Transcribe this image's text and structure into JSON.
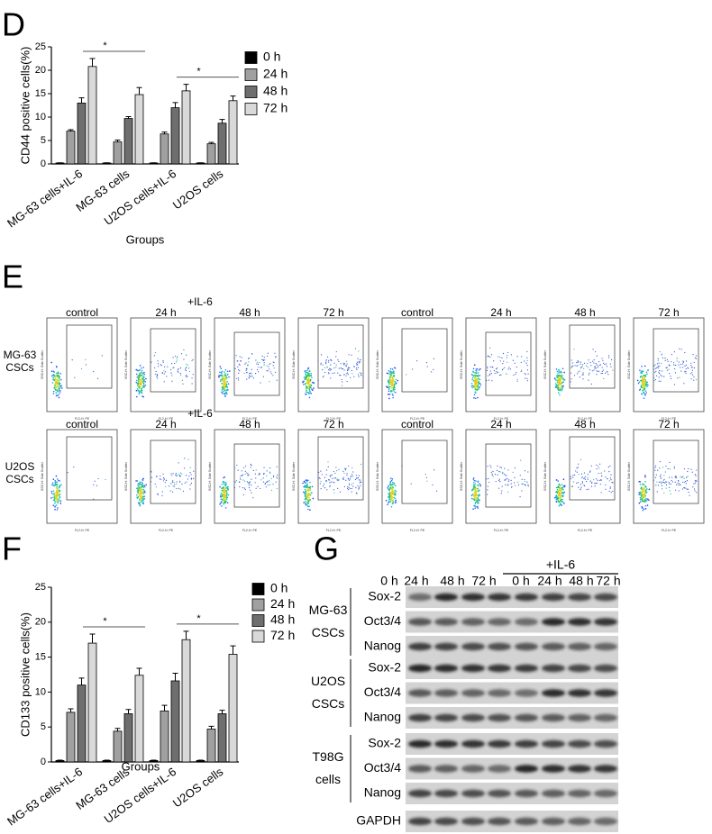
{
  "chart_data": [
    {
      "type": "bar",
      "panel_label": "D",
      "ylabel": "CD44 positive cells(%)",
      "xlabel": "Groups",
      "categories": [
        "MG-63 cells+IL-6",
        "MG-63 cells",
        "U2OS cells+IL-6",
        "U2OS cells"
      ],
      "series": [
        {
          "name": "0 h",
          "color": "#000000",
          "values": [
            0.2,
            0.2,
            0.2,
            0.2
          ],
          "errors": [
            0.05,
            0.05,
            0.05,
            0.05
          ]
        },
        {
          "name": "24 h",
          "color": "#a0a0a0",
          "values": [
            7,
            4.7,
            6.4,
            4.3
          ],
          "errors": [
            0.3,
            0.4,
            0.4,
            0.3
          ]
        },
        {
          "name": "48 h",
          "color": "#6e6e6e",
          "values": [
            13,
            9.7,
            12,
            8.7
          ],
          "errors": [
            1.1,
            0.4,
            1.1,
            0.8
          ]
        },
        {
          "name": "72 h",
          "color": "#d9d9d9",
          "values": [
            20.8,
            14.8,
            15.6,
            13.5
          ],
          "errors": [
            1.7,
            1.5,
            1.4,
            1.0
          ]
        }
      ],
      "ylim": [
        0,
        25
      ],
      "yticks": [
        0,
        5,
        10,
        15,
        20,
        25
      ],
      "legend": "right",
      "annotations": [
        "*",
        "*"
      ]
    },
    {
      "type": "bar",
      "panel_label": "F",
      "ylabel": "CD133 positive cells(%)",
      "xlabel": "Groups",
      "categories": [
        "MG-63 cells+IL-6",
        "MG-63 cells",
        "U2OS cells+IL-6",
        "U2OS cells"
      ],
      "series": [
        {
          "name": "0 h",
          "color": "#000000",
          "values": [
            0.2,
            0.2,
            0.2,
            0.2
          ],
          "errors": [
            0.05,
            0.05,
            0.05,
            0.05
          ]
        },
        {
          "name": "24 h",
          "color": "#a0a0a0",
          "values": [
            7.1,
            4.4,
            7.3,
            4.7
          ],
          "errors": [
            0.5,
            0.4,
            0.8,
            0.4
          ]
        },
        {
          "name": "48 h",
          "color": "#6e6e6e",
          "values": [
            11,
            6.9,
            11.6,
            6.9
          ],
          "errors": [
            1.0,
            0.6,
            1.1,
            0.5
          ]
        },
        {
          "name": "72 h",
          "color": "#d9d9d9",
          "values": [
            17,
            12.4,
            17.5,
            15.4
          ],
          "errors": [
            1.3,
            1.0,
            1.2,
            1.2
          ]
        }
      ],
      "ylim": [
        0,
        25
      ],
      "yticks": [
        0,
        5,
        10,
        15,
        20,
        25
      ],
      "legend": "right",
      "annotations": [
        "*",
        "*"
      ]
    }
  ],
  "flow_cytometry": {
    "panel_label": "E",
    "x_axis": "FL2-H: PE",
    "y_axis": "SSC-H: Side Scatter",
    "rows": [
      {
        "name": [
          "MG-63",
          "CSCs"
        ],
        "treatment": "+IL-6",
        "columns": [
          "control",
          "24 h",
          "48 h",
          "72 h",
          "control",
          "24 h",
          "48 h",
          "72 h"
        ]
      },
      {
        "name": [
          "U2OS",
          "CSCs"
        ],
        "treatment": "+IL-6",
        "columns": [
          "control",
          "24 h",
          "48 h",
          "72 h",
          "control",
          "24 h",
          "48 h",
          "72 h"
        ]
      }
    ]
  },
  "western_blot": {
    "panel_label": "G",
    "lanes": [
      "0 h",
      "24 h",
      "48 h",
      "72 h",
      "0 h",
      "24 h",
      "48 h",
      "72 h"
    ],
    "treatment": "+IL-6",
    "groups": [
      {
        "name": [
          "MG-63",
          "CSCs"
        ],
        "proteins": [
          "Sox-2",
          "Oct3/4",
          "Nanog"
        ]
      },
      {
        "name": [
          "U2OS",
          "CSCs"
        ],
        "proteins": [
          "Sox-2",
          "Oct3/4",
          "Nanog"
        ]
      },
      {
        "name": [
          "T98G",
          "cells"
        ],
        "proteins": [
          "Sox-2",
          "Oct3/4",
          "Nanog"
        ]
      }
    ],
    "loading_control": "GAPDH"
  }
}
